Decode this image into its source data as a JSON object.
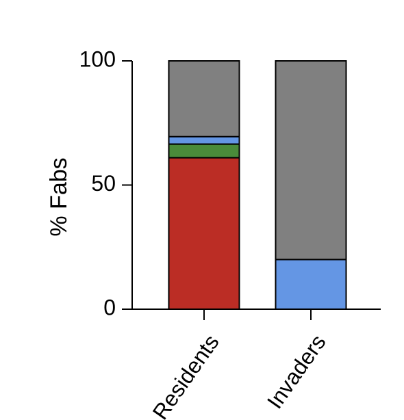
{
  "chart_data": {
    "type": "bar",
    "stacked": true,
    "categories": [
      "Residents",
      "Invaders"
    ],
    "ylabel": "% Fabs",
    "xlabel": "",
    "ylim": [
      0,
      100
    ],
    "yticks": [
      "0",
      "50",
      "100"
    ],
    "segments": [
      {
        "category": "Residents",
        "color": "#BB2D25",
        "from": 0,
        "to": 61
      },
      {
        "category": "Residents",
        "color": "#4A8B3A",
        "from": 61,
        "to": 66.5
      },
      {
        "category": "Residents",
        "color": "#6496E4",
        "from": 66.5,
        "to": 69.5
      },
      {
        "category": "Residents",
        "color": "#808080",
        "from": 69.5,
        "to": 100
      },
      {
        "category": "Invaders",
        "color": "#6496E4",
        "from": 0,
        "to": 20
      },
      {
        "category": "Invaders",
        "color": "#808080",
        "from": 20,
        "to": 100
      }
    ],
    "grid": false,
    "legend": "none"
  }
}
